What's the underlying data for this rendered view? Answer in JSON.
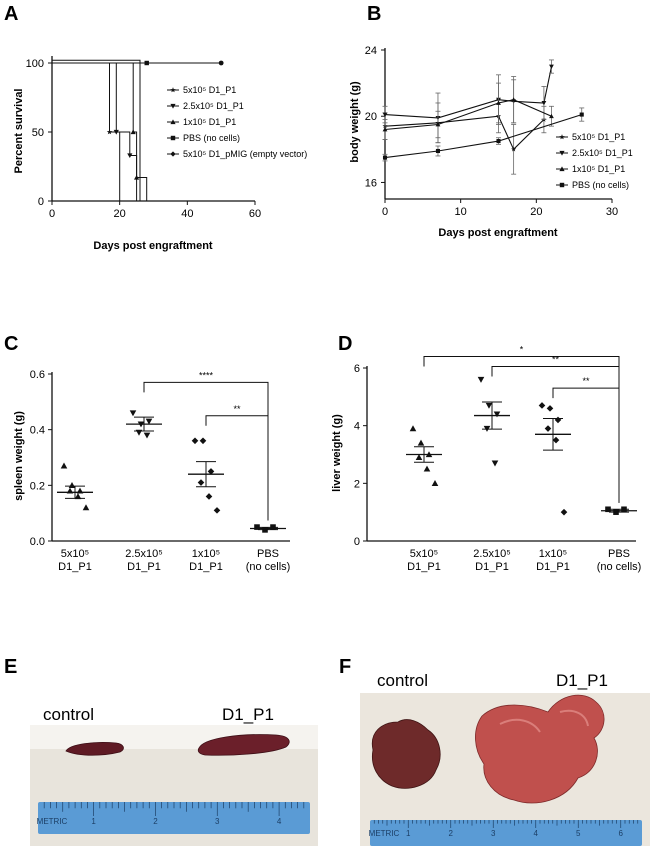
{
  "panels": {
    "A": "A",
    "B": "B",
    "C": "C",
    "D": "D",
    "E": "E",
    "F": "F"
  },
  "colors": {
    "ink": "#111111",
    "ruler": "#5a9bd5",
    "ruler_dark": "#1c3f66",
    "spleen": "#6b1f2a",
    "liver": "#b8454a",
    "liver_control": "#6e2a2a",
    "photo_bg": "#e9e4da"
  },
  "chart_data": [
    {
      "panel": "A",
      "type": "line",
      "subtype": "kaplan-meier step",
      "title": "",
      "xlabel": "Days post engraftment",
      "ylabel": "Percent survival",
      "xlim": [
        0,
        60
      ],
      "ylim": [
        0,
        100
      ],
      "xticks": [
        "0",
        "20",
        "40",
        "60"
      ],
      "yticks": [
        "0",
        "50",
        "100"
      ],
      "legend_position": "right",
      "series": [
        {
          "name": "5x10⁵ D1_P1",
          "marker": "star",
          "steps": [
            [
              0,
              100
            ],
            [
              17,
              100
            ],
            [
              17,
              50
            ],
            [
              20,
              50
            ],
            [
              20,
              0
            ]
          ]
        },
        {
          "name": "2.5x10⁵ D1_P1",
          "marker": "tri-down",
          "steps": [
            [
              0,
              100
            ],
            [
              19,
              100
            ],
            [
              19,
              50
            ],
            [
              23,
              50
            ],
            [
              23,
              33
            ],
            [
              25,
              33
            ],
            [
              25,
              0
            ]
          ]
        },
        {
          "name": "1x10⁵ D1_P1",
          "marker": "triangle",
          "steps": [
            [
              0,
              100
            ],
            [
              24,
              100
            ],
            [
              24,
              50
            ],
            [
              25,
              50
            ],
            [
              25,
              17
            ],
            [
              28,
              17
            ],
            [
              28,
              0
            ]
          ]
        },
        {
          "name": "PBS (no cells)",
          "marker": "square",
          "steps": [
            [
              0,
              100
            ],
            [
              50,
              100
            ]
          ]
        },
        {
          "name": "5x10⁵ D1_pMIG (empty vector)",
          "marker": "diamond",
          "steps": [
            [
              0,
              102
            ],
            [
              26,
              102
            ],
            [
              26,
              0
            ]
          ]
        }
      ]
    },
    {
      "panel": "B",
      "type": "line",
      "title": "",
      "xlabel": "Days post engraftment",
      "ylabel": "body weight (g)",
      "xlim": [
        0,
        30
      ],
      "ylim": [
        15,
        24
      ],
      "xticks": [
        "0",
        "10",
        "20",
        "30"
      ],
      "yticks": [
        "16",
        "20",
        "24"
      ],
      "legend_position": "right",
      "series": [
        {
          "name": "5x10⁵ D1_P1",
          "marker": "star",
          "x": [
            0,
            7,
            15,
            17,
            21
          ],
          "y": [
            19.4,
            19.6,
            20.0,
            18.0,
            19.8
          ],
          "err": [
            0.8,
            1.2,
            1.0,
            1.5,
            0.8
          ]
        },
        {
          "name": "2.5x10⁵ D1_P1",
          "marker": "tri-down",
          "x": [
            0,
            7,
            15,
            17,
            21,
            22
          ],
          "y": [
            20.1,
            19.9,
            21.0,
            20.9,
            20.8,
            23.0
          ],
          "err": [
            0.5,
            1.5,
            1.5,
            1.3,
            1.0,
            0.4
          ]
        },
        {
          "name": "1x10⁵ D1_P1",
          "marker": "triangle",
          "x": [
            0,
            7,
            15,
            17,
            22
          ],
          "y": [
            19.2,
            19.5,
            20.8,
            21.0,
            20.0
          ],
          "err": [
            0.6,
            0.8,
            1.2,
            1.4,
            0.6
          ]
        },
        {
          "name": "PBS (no cells)",
          "marker": "square",
          "x": [
            0,
            7,
            15,
            26
          ],
          "y": [
            17.5,
            17.9,
            18.5,
            20.1
          ],
          "err": [
            0.2,
            0.3,
            0.2,
            0.4
          ]
        }
      ]
    },
    {
      "panel": "C",
      "type": "scatter",
      "subtype": "dot plot with mean ± SEM",
      "title": "",
      "xlabel": "",
      "ylabel": "spleen weight (g)",
      "ylim": [
        0,
        0.6
      ],
      "yticks": [
        "0.0",
        "0.2",
        "0.4",
        "0.6"
      ],
      "categories": [
        {
          "line1": "5x10⁵",
          "line2": "D1_P1",
          "marker": "triangle",
          "values": [
            0.27,
            0.2,
            0.18,
            0.18,
            0.16,
            0.12
          ],
          "mean": 0.175,
          "sem": 0.022
        },
        {
          "line1": "2.5x10⁵",
          "line2": "D1_P1",
          "marker": "tri-down",
          "values": [
            0.46,
            0.42,
            0.43,
            0.39,
            0.38
          ],
          "mean": 0.42,
          "sem": 0.025
        },
        {
          "line1": "1x10⁵",
          "line2": "D1_P1",
          "marker": "diamond",
          "values": [
            0.36,
            0.36,
            0.25,
            0.21,
            0.16,
            0.11
          ],
          "mean": 0.24,
          "sem": 0.045
        },
        {
          "line1": "PBS",
          "line2": "(no cells)",
          "marker": "square",
          "values": [
            0.05,
            0.04,
            0.05
          ],
          "mean": 0.045,
          "sem": 0.004
        }
      ],
      "brackets": [
        {
          "from": 1,
          "to": 3,
          "y": 0.57,
          "label": "****"
        },
        {
          "from": 2,
          "to": 3,
          "y": 0.45,
          "label": "**"
        }
      ]
    },
    {
      "panel": "D",
      "type": "scatter",
      "subtype": "dot plot with mean ± SEM",
      "title": "",
      "xlabel": "",
      "ylabel": "liver weight (g)",
      "ylim": [
        0,
        6
      ],
      "yticks": [
        "0",
        "2",
        "4",
        "6"
      ],
      "categories": [
        {
          "line1": "5x10⁵",
          "line2": "D1_P1",
          "marker": "triangle",
          "values": [
            3.9,
            3.4,
            3.0,
            2.9,
            2.5,
            2.0
          ],
          "mean": 3.0,
          "sem": 0.27
        },
        {
          "line1": "2.5x10⁵",
          "line2": "D1_P1",
          "marker": "tri-down",
          "values": [
            5.6,
            4.7,
            4.4,
            3.9,
            2.7
          ],
          "mean": 4.35,
          "sem": 0.47
        },
        {
          "line1": "1x10⁵",
          "line2": "D1_P1",
          "marker": "diamond",
          "values": [
            4.7,
            4.6,
            4.2,
            3.9,
            3.5,
            1.0
          ],
          "mean": 3.7,
          "sem": 0.55
        },
        {
          "line1": "PBS",
          "line2": "(no cells)",
          "marker": "square",
          "values": [
            1.1,
            1.0,
            1.1
          ],
          "mean": 1.05,
          "sem": 0.05
        }
      ],
      "brackets": [
        {
          "from": 0,
          "to": 3,
          "y": 6.4,
          "label": "*"
        },
        {
          "from": 1,
          "to": 3,
          "y": 6.05,
          "label": "**"
        },
        {
          "from": 2,
          "to": 3,
          "y": 5.3,
          "label": "**"
        }
      ]
    }
  ],
  "photos": {
    "E": {
      "labels": [
        "control",
        "D1_P1"
      ],
      "ruler_marks": [
        "METRIC",
        "1",
        "2",
        "3",
        "4"
      ],
      "ruler_marks_E": [
        "METRIC",
        "1",
        "2",
        "3",
        "4"
      ]
    },
    "F": {
      "labels": [
        "control",
        "D1_P1"
      ],
      "ruler_marks": [
        "METRIC",
        "1",
        "2",
        "3",
        "4",
        "5",
        "6"
      ]
    }
  }
}
